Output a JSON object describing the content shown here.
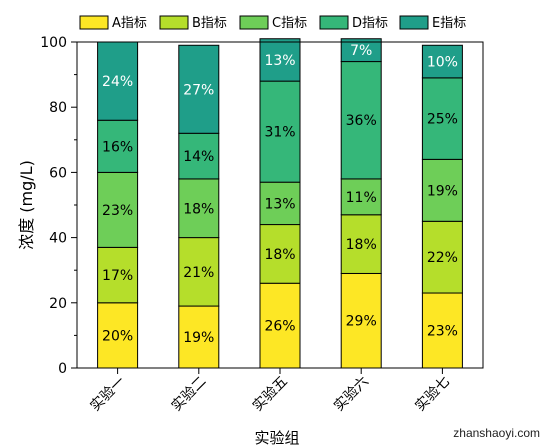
{
  "chart_data": {
    "type": "bar",
    "stacked": true,
    "xlabel": "实验组",
    "ylabel": "浓度 (mg/L)",
    "ylim": [
      0,
      100
    ],
    "yticks": [
      0,
      20,
      40,
      60,
      80,
      100
    ],
    "categories": [
      "实验一",
      "实验二",
      "实验五",
      "实验六",
      "实验七"
    ],
    "legend_position": "top",
    "series": [
      {
        "name": "A指标",
        "color": "#FDE725",
        "label_color": "#000000",
        "values": [
          20,
          19,
          26,
          29,
          23
        ]
      },
      {
        "name": "B指标",
        "color": "#B5DE2B",
        "label_color": "#000000",
        "values": [
          17,
          21,
          18,
          18,
          22
        ]
      },
      {
        "name": "C指标",
        "color": "#6ECE58",
        "label_color": "#000000",
        "values": [
          23,
          18,
          13,
          11,
          19
        ]
      },
      {
        "name": "D指标",
        "color": "#35B779",
        "label_color": "#000000",
        "values": [
          16,
          14,
          31,
          36,
          25
        ]
      },
      {
        "name": "E指标",
        "color": "#1F9E89",
        "label_color": "#ffffff",
        "values": [
          24,
          27,
          13,
          7,
          10
        ]
      }
    ]
  },
  "watermark": "zhanshaoyi.com"
}
